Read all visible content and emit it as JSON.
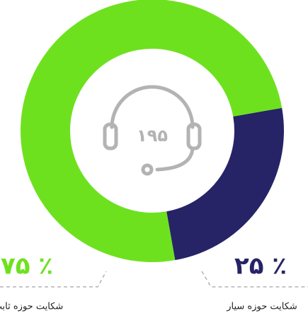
{
  "chart_data": {
    "type": "pie",
    "categories": [
      "شکایت حوزه سیار",
      "شکایت حوزه ثابت"
    ],
    "values": [
      25,
      75
    ],
    "value_labels": [
      "۲۵ ٪",
      "۷۵ ٪"
    ],
    "colors": [
      "#262466",
      "#6ee11f"
    ],
    "center_label": "۱۹۵"
  }
}
